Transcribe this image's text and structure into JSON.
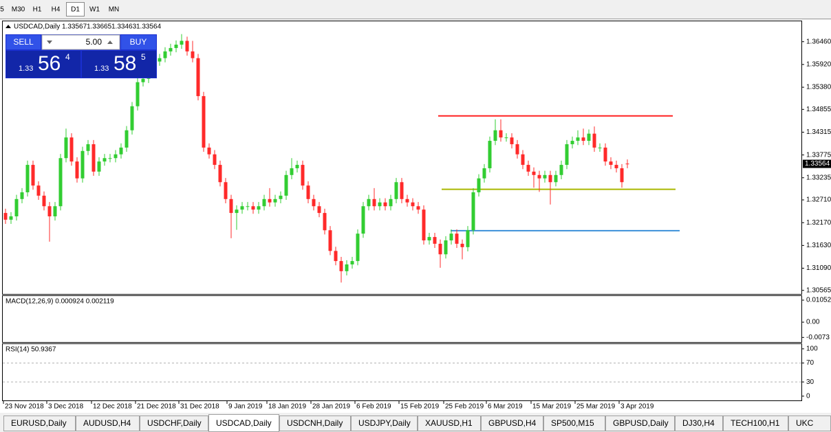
{
  "toolbar": {
    "timeframes": [
      "5",
      "M30",
      "H1",
      "H4",
      "D1",
      "W1",
      "MN"
    ],
    "active": "D1"
  },
  "chart_data": {
    "type": "candlestick",
    "header": {
      "symbol": "USDCAD,Daily",
      "ohlc": [
        "1.33567",
        "1.33665",
        "1.33463",
        "1.33564"
      ]
    },
    "up_color": "#32cd32",
    "down_color": "#ff2a2a",
    "candles": [
      [
        1.324,
        1.325,
        1.3214,
        1.3224
      ],
      [
        1.3224,
        1.3242,
        1.3214,
        1.3232
      ],
      [
        1.3232,
        1.3283,
        1.3222,
        1.3273
      ],
      [
        1.3273,
        1.3299,
        1.3263,
        1.3289
      ],
      [
        1.3289,
        1.3364,
        1.3279,
        1.3354
      ],
      [
        1.3354,
        1.3364,
        1.3295,
        1.3305
      ],
      [
        1.3305,
        1.3315,
        1.3271,
        1.3281
      ],
      [
        1.3281,
        1.3291,
        1.3246,
        1.3256
      ],
      [
        1.3256,
        1.3266,
        1.3172,
        1.3232
      ],
      [
        1.3232,
        1.3266,
        1.3222,
        1.3256
      ],
      [
        1.3256,
        1.338,
        1.3246,
        1.337
      ],
      [
        1.337,
        1.344,
        1.336,
        1.3419
      ],
      [
        1.3419,
        1.3429,
        1.3352,
        1.3362
      ],
      [
        1.3362,
        1.3372,
        1.3312,
        1.3322
      ],
      [
        1.3322,
        1.3397,
        1.3312,
        1.3387
      ],
      [
        1.3387,
        1.3413,
        1.3377,
        1.3403
      ],
      [
        1.3403,
        1.3413,
        1.3328,
        1.3338
      ],
      [
        1.3338,
        1.3372,
        1.3328,
        1.3362
      ],
      [
        1.3362,
        1.338,
        1.3352,
        1.337
      ],
      [
        1.337,
        1.338,
        1.336,
        1.337
      ],
      [
        1.337,
        1.3389,
        1.336,
        1.3379
      ],
      [
        1.3379,
        1.3405,
        1.3369,
        1.3395
      ],
      [
        1.3395,
        1.3446,
        1.3385,
        1.3436
      ],
      [
        1.3436,
        1.3503,
        1.3426,
        1.3493
      ],
      [
        1.3493,
        1.356,
        1.3483,
        1.355
      ],
      [
        1.355,
        1.3568,
        1.354,
        1.3558
      ],
      [
        1.3558,
        1.3592,
        1.3548,
        1.3582
      ],
      [
        1.3582,
        1.3609,
        1.3572,
        1.3599
      ],
      [
        1.3599,
        1.3617,
        1.3589,
        1.3607
      ],
      [
        1.3607,
        1.3633,
        1.3597,
        1.3623
      ],
      [
        1.3623,
        1.3641,
        1.3613,
        1.3631
      ],
      [
        1.3631,
        1.3649,
        1.3621,
        1.3639
      ],
      [
        1.3639,
        1.3664,
        1.3629,
        1.3648
      ],
      [
        1.3648,
        1.3658,
        1.3613,
        1.3623
      ],
      [
        1.3623,
        1.3648,
        1.3597,
        1.3607
      ],
      [
        1.3607,
        1.3617,
        1.3507,
        1.3517
      ],
      [
        1.3517,
        1.3527,
        1.3385,
        1.3395
      ],
      [
        1.3395,
        1.3405,
        1.3369,
        1.3379
      ],
      [
        1.3379,
        1.3389,
        1.3344,
        1.3354
      ],
      [
        1.3354,
        1.3364,
        1.3303,
        1.3313
      ],
      [
        1.3313,
        1.3323,
        1.3263,
        1.3273
      ],
      [
        1.3273,
        1.3283,
        1.318,
        1.324
      ],
      [
        1.324,
        1.3258,
        1.32,
        1.3248
      ],
      [
        1.3248,
        1.3266,
        1.3238,
        1.3256
      ],
      [
        1.3256,
        1.3266,
        1.3246,
        1.3256
      ],
      [
        1.3256,
        1.3266,
        1.3238,
        1.3248
      ],
      [
        1.3248,
        1.3266,
        1.3238,
        1.3256
      ],
      [
        1.3256,
        1.3283,
        1.3246,
        1.3273
      ],
      [
        1.3273,
        1.3299,
        1.3255,
        1.3265
      ],
      [
        1.3265,
        1.3283,
        1.3255,
        1.3273
      ],
      [
        1.3273,
        1.3291,
        1.3263,
        1.3281
      ],
      [
        1.3281,
        1.334,
        1.3271,
        1.333
      ],
      [
        1.333,
        1.337,
        1.332,
        1.3346
      ],
      [
        1.3346,
        1.3364,
        1.3336,
        1.3354
      ],
      [
        1.3354,
        1.3364,
        1.3295,
        1.3305
      ],
      [
        1.3305,
        1.3315,
        1.3263,
        1.3273
      ],
      [
        1.3273,
        1.3283,
        1.3246,
        1.3256
      ],
      [
        1.3256,
        1.3266,
        1.323,
        1.324
      ],
      [
        1.324,
        1.325,
        1.3189,
        1.3199
      ],
      [
        1.3199,
        1.3209,
        1.314,
        1.315
      ],
      [
        1.315,
        1.316,
        1.3116,
        1.3126
      ],
      [
        1.3126,
        1.3136,
        1.3075,
        1.3102
      ],
      [
        1.3102,
        1.3128,
        1.3092,
        1.3118
      ],
      [
        1.3118,
        1.3136,
        1.3108,
        1.3126
      ],
      [
        1.3126,
        1.3201,
        1.3116,
        1.3191
      ],
      [
        1.3191,
        1.3266,
        1.3181,
        1.3256
      ],
      [
        1.3256,
        1.3283,
        1.3246,
        1.3273
      ],
      [
        1.3273,
        1.3299,
        1.3246,
        1.3256
      ],
      [
        1.3256,
        1.3275,
        1.3246,
        1.3265
      ],
      [
        1.3265,
        1.3275,
        1.3246,
        1.3256
      ],
      [
        1.3256,
        1.3283,
        1.3246,
        1.3273
      ],
      [
        1.3273,
        1.3323,
        1.3263,
        1.3313
      ],
      [
        1.3313,
        1.3323,
        1.3263,
        1.3273
      ],
      [
        1.3273,
        1.3283,
        1.3255,
        1.3265
      ],
      [
        1.3265,
        1.3275,
        1.3246,
        1.3256
      ],
      [
        1.3256,
        1.3266,
        1.3238,
        1.3248
      ],
      [
        1.3248,
        1.3258,
        1.3165,
        1.3175
      ],
      [
        1.3175,
        1.3193,
        1.3165,
        1.3183
      ],
      [
        1.3183,
        1.3193,
        1.3157,
        1.3167
      ],
      [
        1.3167,
        1.3177,
        1.311,
        1.3142
      ],
      [
        1.3142,
        1.3185,
        1.3132,
        1.3175
      ],
      [
        1.3175,
        1.3201,
        1.3165,
        1.3191
      ],
      [
        1.3191,
        1.3201,
        1.3157,
        1.3167
      ],
      [
        1.3167,
        1.3177,
        1.313,
        1.3159
      ],
      [
        1.3159,
        1.3209,
        1.3149,
        1.3199
      ],
      [
        1.3199,
        1.3299,
        1.3189,
        1.3289
      ],
      [
        1.3289,
        1.3332,
        1.3279,
        1.3322
      ],
      [
        1.3322,
        1.3356,
        1.3312,
        1.3346
      ],
      [
        1.3346,
        1.3421,
        1.3336,
        1.3411
      ],
      [
        1.3411,
        1.3462,
        1.3401,
        1.3436
      ],
      [
        1.3436,
        1.3462,
        1.3409,
        1.3419
      ],
      [
        1.3419,
        1.3429,
        1.3409,
        1.3419
      ],
      [
        1.3419,
        1.3429,
        1.3393,
        1.3403
      ],
      [
        1.3403,
        1.3413,
        1.3369,
        1.3379
      ],
      [
        1.3379,
        1.3389,
        1.3344,
        1.3354
      ],
      [
        1.3354,
        1.3364,
        1.3328,
        1.3338
      ],
      [
        1.3338,
        1.3348,
        1.33,
        1.333
      ],
      [
        1.333,
        1.334,
        1.329,
        1.3322
      ],
      [
        1.3322,
        1.334,
        1.3312,
        1.333
      ],
      [
        1.333,
        1.334,
        1.326,
        1.3313
      ],
      [
        1.3313,
        1.334,
        1.3303,
        1.333
      ],
      [
        1.333,
        1.3364,
        1.332,
        1.3354
      ],
      [
        1.3354,
        1.3413,
        1.3344,
        1.3403
      ],
      [
        1.3403,
        1.3421,
        1.3393,
        1.3411
      ],
      [
        1.3411,
        1.3436,
        1.3401,
        1.3419
      ],
      [
        1.3419,
        1.344,
        1.3401,
        1.3411
      ],
      [
        1.3411,
        1.3438,
        1.3401,
        1.3428
      ],
      [
        1.3428,
        1.3445,
        1.3385,
        1.3395
      ],
      [
        1.3395,
        1.3405,
        1.3385,
        1.3395
      ],
      [
        1.3395,
        1.3405,
        1.3352,
        1.3362
      ],
      [
        1.3362,
        1.3372,
        1.3344,
        1.3354
      ],
      [
        1.3354,
        1.3364,
        1.3336,
        1.3346
      ],
      [
        1.3346,
        1.3356,
        1.33,
        1.3313
      ],
      [
        1.3357,
        1.3367,
        1.3346,
        1.3356
      ]
    ],
    "levels": [
      {
        "value": 1.347,
        "color": "#ff2020"
      },
      {
        "value": 1.3296,
        "color": "#aab800"
      },
      {
        "value": 1.3198,
        "color": "#3a8fd8"
      }
    ],
    "ylim": [
      1.3048,
      1.3696
    ],
    "yticks": [
      {
        "value": 1.3646,
        "label": "1.36460"
      },
      {
        "value": 1.3592,
        "label": "1.35920"
      },
      {
        "value": 1.3538,
        "label": "1.35380"
      },
      {
        "value": 1.34855,
        "label": "1.34855"
      },
      {
        "value": 1.34315,
        "label": "1.34315"
      },
      {
        "value": 1.33775,
        "label": "1.33775"
      },
      {
        "value": 1.33235,
        "label": "1.33235"
      },
      {
        "value": 1.3271,
        "label": "1.32710"
      },
      {
        "value": 1.3217,
        "label": "1.32170"
      },
      {
        "value": 1.3163,
        "label": "1.31630"
      },
      {
        "value": 1.3109,
        "label": "1.31090"
      },
      {
        "value": 1.30565,
        "label": "1.30565"
      }
    ],
    "current_price": {
      "value": 1.33564,
      "label": "1.33564"
    },
    "x_labels": [
      "23 Nov 2018",
      "3 Dec 2018",
      "12 Dec 2018",
      "21 Dec 2018",
      "31 Dec 2018",
      "9 Jan 2019",
      "18 Jan 2019",
      "28 Jan 2019",
      "6 Feb 2019",
      "15 Feb 2019",
      "25 Feb 2019",
      "6 Mar 2019",
      "15 Mar 2019",
      "25 Mar 2019",
      "3 Apr 2019"
    ],
    "indicators": [
      {
        "label": "MACD(12,26,9) 0.000924 0.002119",
        "ylim": [
          -0.0095,
          0.0125
        ],
        "yticks": [
          0.010525,
          {
            "value": 0,
            "label": "0.00"
          },
          -0.0073
        ]
      },
      {
        "label": "RSI(14) 50.9367",
        "ylim": [
          -9,
          110
        ],
        "yticks": [
          100,
          70,
          30,
          0
        ]
      }
    ]
  },
  "trade_panel": {
    "sell": "SELL",
    "lot": "5.00",
    "buy": "BUY",
    "bid": {
      "prefix": "1.33",
      "big": "56",
      "small": "4"
    },
    "ask": {
      "prefix": "1.33",
      "big": "58",
      "small": "5"
    }
  },
  "tabs": [
    "EURUSD,Daily",
    "AUDUSD,H4",
    "USDCHF,Daily",
    "USDCAD,Daily",
    "USDCNH,Daily",
    "USDJPY,Daily",
    "XAUUSD,H1",
    "GBPUSD,H4",
    "SP500,M15",
    "GBPUSD,Daily",
    "DJ30,H4",
    "TECH100,H1",
    "UKC"
  ],
  "active_tab": "USDCAD,Daily"
}
